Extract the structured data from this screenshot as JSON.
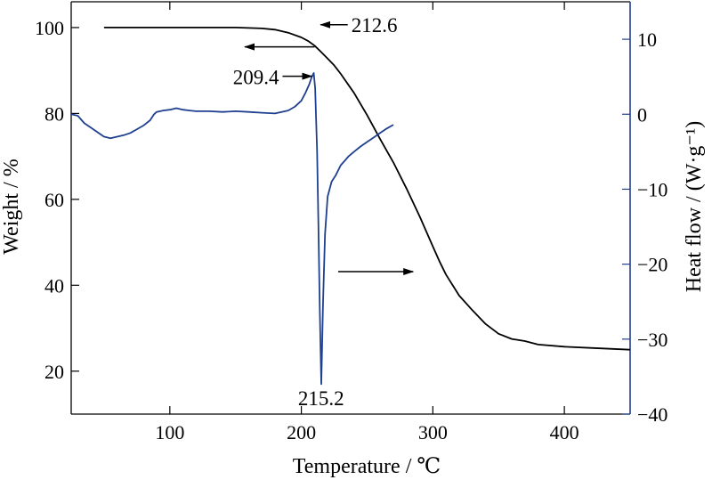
{
  "chart_data": {
    "type": "line",
    "xlabel": "Temperature / ℃",
    "ylabel_left": "Weight / %",
    "ylabel_right": "Heat flow / (W·g⁻¹)",
    "xlim": [
      25,
      450
    ],
    "ylim_left": [
      10,
      106
    ],
    "ylim_right": [
      -40,
      15
    ],
    "x_ticks": [
      100,
      200,
      300,
      400
    ],
    "x_tick_labels": [
      "100",
      "200",
      "300",
      "400"
    ],
    "y_left_ticks": [
      20,
      40,
      60,
      80,
      100
    ],
    "y_left_tick_labels": [
      "20",
      "40",
      "60",
      "80",
      "100"
    ],
    "y_right_ticks": [
      -40,
      -30,
      -20,
      -10,
      0,
      10
    ],
    "y_right_tick_labels": [
      "−40",
      "−30",
      "−20",
      "−10",
      "0",
      "10"
    ],
    "grid": false,
    "series": [
      {
        "axis": "left",
        "color": "#000000",
        "x": [
          50,
          100,
          150,
          170,
          180,
          190,
          200,
          205,
          210,
          215,
          220,
          225,
          230,
          240,
          250,
          260,
          270,
          280,
          290,
          300,
          305,
          310,
          320,
          330,
          340,
          350,
          360,
          370,
          380,
          400,
          420,
          450
        ],
        "values": [
          100,
          100,
          100,
          99.8,
          99.5,
          98.8,
          97.7,
          96.9,
          95.8,
          94.3,
          92.8,
          91.2,
          89.2,
          84.8,
          79.6,
          74.0,
          68.6,
          62.5,
          56.0,
          49.0,
          45.6,
          42.5,
          37.6,
          34.2,
          31.0,
          28.7,
          27.5,
          27.0,
          26.2,
          25.7,
          25.4,
          25.0
        ]
      },
      {
        "axis": "right",
        "color": "#1f3f8f",
        "x": [
          25,
          30,
          35,
          40,
          45,
          50,
          55,
          60,
          65,
          70,
          75,
          80,
          85,
          88,
          90,
          95,
          100,
          105,
          110,
          115,
          120,
          130,
          140,
          150,
          160,
          170,
          180,
          185,
          190,
          195,
          200,
          203,
          206,
          208,
          209.4,
          210.5,
          212,
          213,
          214,
          215.2,
          216.5,
          218,
          220,
          223,
          226,
          230,
          233,
          236,
          240,
          245,
          250,
          255,
          260,
          265,
          270
        ],
        "values": [
          0,
          -0.2,
          -1.2,
          -1.8,
          -2.4,
          -3.0,
          -3.2,
          -3.0,
          -2.8,
          -2.5,
          -2.0,
          -1.5,
          -0.8,
          0,
          0.3,
          0.5,
          0.6,
          0.8,
          0.6,
          0.5,
          0.4,
          0.4,
          0.3,
          0.4,
          0.3,
          0.2,
          0.1,
          0.3,
          0.5,
          1.0,
          1.8,
          2.8,
          4.0,
          5.0,
          5.5,
          3.5,
          -5,
          -15,
          -26,
          -36,
          -25,
          -16,
          -11,
          -9,
          -8.2,
          -6.8,
          -6.2,
          -5.6,
          -5.0,
          -4.3,
          -3.7,
          -3.1,
          -2.5,
          -1.9,
          -1.4
        ]
      }
    ],
    "annotations": [
      {
        "label": "212.6",
        "x": 212.6,
        "y": 96.2,
        "axis": "left",
        "arrow": "left",
        "text_x": 238,
        "text_y": 99
      },
      {
        "label": "209.4",
        "x": 209.4,
        "y": 5.5,
        "axis": "right",
        "arrow": "right",
        "text_x": 183,
        "text_y": 4
      },
      {
        "label": "215.2",
        "x": 215.2,
        "y": -36,
        "axis": "right",
        "arrow": "none",
        "text_x": 215,
        "text_y": -38.8
      }
    ],
    "axis_arrows": [
      {
        "direction": "left",
        "x1": 210,
        "x2": 157,
        "y": 95.5,
        "axis": "left"
      },
      {
        "direction": "right",
        "x1": 228,
        "x2": 285,
        "y": -21,
        "axis": "right"
      }
    ]
  }
}
